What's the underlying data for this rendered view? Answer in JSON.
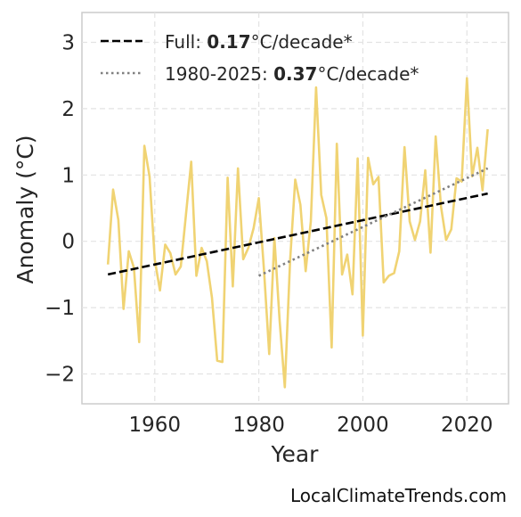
{
  "chart_data": {
    "type": "line",
    "xlabel": "Year",
    "ylabel": "Anomaly (°C)",
    "xlim": [
      1946,
      2028
    ],
    "ylim": [
      -2.45,
      3.45
    ],
    "xticks": [
      1960,
      1980,
      2000,
      2020
    ],
    "yticks": [
      -2,
      -1,
      0,
      1,
      2,
      3
    ],
    "grid": true,
    "legend_placement": "top-left",
    "series": [
      {
        "color": "#f0d373",
        "x": [
          1951,
          1952,
          1953,
          1954,
          1955,
          1956,
          1957,
          1958,
          1959,
          1960,
          1961,
          1962,
          1963,
          1964,
          1965,
          1966,
          1967,
          1968,
          1969,
          1970,
          1971,
          1972,
          1973,
          1974,
          1975,
          1976,
          1977,
          1978,
          1979,
          1980,
          1981,
          1982,
          1983,
          1984,
          1985,
          1986,
          1987,
          1988,
          1989,
          1990,
          1991,
          1992,
          1993,
          1994,
          1995,
          1996,
          1997,
          1998,
          1999,
          2000,
          2001,
          2002,
          2003,
          2004,
          2005,
          2006,
          2007,
          2008,
          2009,
          2010,
          2011,
          2012,
          2013,
          2014,
          2015,
          2016,
          2017,
          2018,
          2019,
          2020,
          2021,
          2022,
          2023,
          2024
        ],
        "y": [
          -0.35,
          0.78,
          0.32,
          -1.02,
          -0.15,
          -0.4,
          -1.52,
          1.44,
          0.98,
          -0.28,
          -0.74,
          -0.05,
          -0.18,
          -0.5,
          -0.38,
          0.4,
          1.2,
          -0.52,
          -0.1,
          -0.3,
          -0.85,
          -1.8,
          -1.82,
          0.96,
          -0.68,
          1.1,
          -0.27,
          -0.1,
          0.2,
          0.65,
          -0.45,
          -1.7,
          0.05,
          -1.2,
          -2.2,
          -0.3,
          0.93,
          0.55,
          -0.45,
          0.3,
          2.32,
          0.7,
          0.35,
          -1.6,
          1.47,
          -0.5,
          -0.2,
          -0.8,
          1.25,
          -1.42,
          1.26,
          0.86,
          0.97,
          -0.62,
          -0.52,
          -0.48,
          -0.15,
          1.42,
          0.3,
          0.02,
          0.3,
          1.07,
          -0.17,
          1.58,
          0.53,
          0.02,
          0.18,
          0.95,
          0.9,
          2.46,
          0.98,
          1.41,
          0.77,
          1.69
        ]
      }
    ],
    "trends": [
      {
        "label": "Full: ",
        "value": "0.17",
        "unit": "°C/decade*",
        "style": "dashed",
        "color": "#000000",
        "x": [
          1951,
          2024
        ],
        "y": [
          -0.5,
          0.72
        ]
      },
      {
        "label": "1980-2025: ",
        "value": "0.37",
        "unit": "°C/decade*",
        "style": "dotted",
        "color": "#808080",
        "x": [
          1980,
          2024
        ],
        "y": [
          -0.52,
          1.1
        ]
      }
    ]
  },
  "watermark": "LocalClimateTrends.com"
}
